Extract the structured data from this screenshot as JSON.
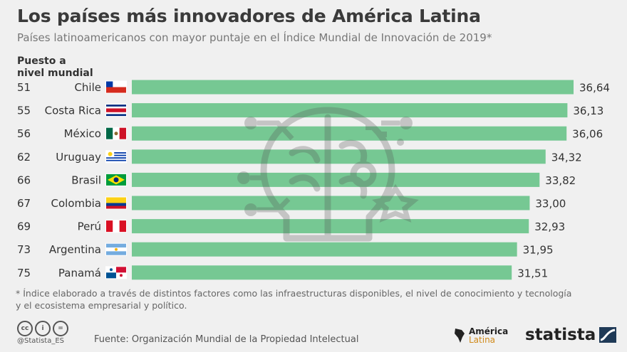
{
  "title": "Los países más innovadores de América Latina",
  "subtitle": "Países latinoamericanos con mayor puntaje en el Índice Mundial de Innovación de 2019*",
  "rank_header_line1": "Puesto a",
  "rank_header_line2": "nivel mundial",
  "footnote": "* Índice elaborado a través de distintos factores como las infraestructuras disponibles, el nivel de conocimiento y tecnología y el ecosistema empresarial y político.",
  "source": "Fuente: Organización Mundial de la Propiedad Intelectual",
  "handle": "@Statista_ES",
  "brand_america_line1": "América",
  "brand_america_line2": "Latina",
  "brand_statista": "statista",
  "colors": {
    "bar": "#76c893",
    "text": "#333333",
    "subtitle": "#777777"
  },
  "chart_data": {
    "type": "bar",
    "orientation": "horizontal",
    "categories": [
      "Chile",
      "Costa Rica",
      "México",
      "Uruguay",
      "Brasil",
      "Colombia",
      "Perú",
      "Argentina",
      "Panamá"
    ],
    "ranks": [
      "51",
      "55",
      "56",
      "62",
      "66",
      "67",
      "69",
      "73",
      "75"
    ],
    "values": [
      36.64,
      36.13,
      36.06,
      34.32,
      33.82,
      33.0,
      32.93,
      31.95,
      31.51
    ],
    "value_labels": [
      "36,64",
      "36,13",
      "36,06",
      "34,32",
      "33,82",
      "33,00",
      "32,93",
      "31,95",
      "31,51"
    ],
    "flags": [
      "chile-flag",
      "costa-rica-flag",
      "mexico-flag",
      "uruguay-flag",
      "brazil-flag",
      "colombia-flag",
      "peru-flag",
      "argentina-flag",
      "panama-flag"
    ]
  }
}
